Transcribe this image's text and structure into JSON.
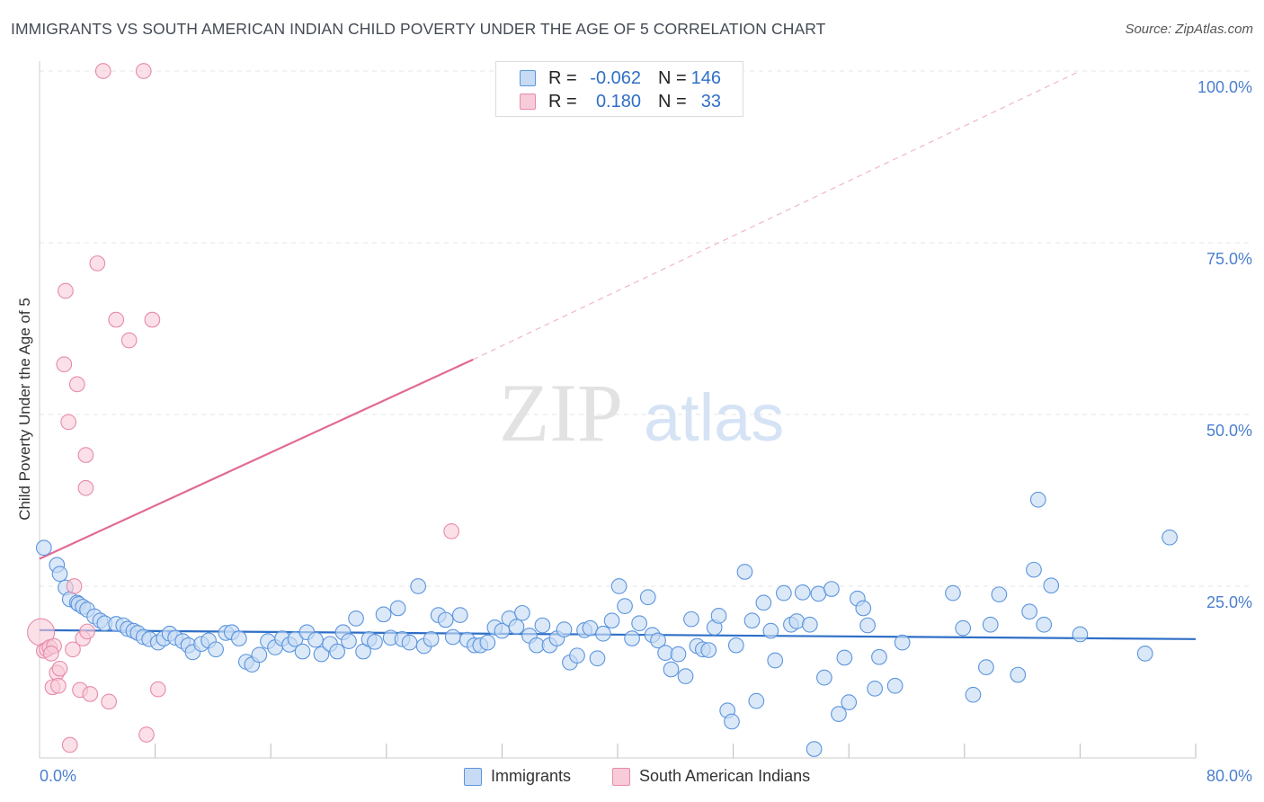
{
  "chart_data": {
    "type": "scatter",
    "title": "IMMIGRANTS VS SOUTH AMERICAN INDIAN CHILD POVERTY UNDER THE AGE OF 5 CORRELATION CHART",
    "source": "Source: ZipAtlas.com",
    "xlabel": "",
    "ylabel": "Child Poverty Under the Age of 5",
    "xlim": [
      0,
      80
    ],
    "ylim": [
      0,
      100
    ],
    "x_tick_labels": [
      {
        "value": 0,
        "label": "0.0%"
      },
      {
        "value": 80,
        "label": "80.0%"
      }
    ],
    "y_tick_labels": [
      {
        "value": 25,
        "label": "25.0%"
      },
      {
        "value": 50,
        "label": "50.0%"
      },
      {
        "value": 75,
        "label": "75.0%"
      },
      {
        "value": 100,
        "label": "100.0%"
      }
    ],
    "grid": true,
    "watermark": {
      "zip": "ZIP",
      "atlas": "atlas"
    },
    "legend": [
      {
        "series": "Immigrants",
        "r_label": "R =",
        "r_value": "-0.062",
        "n_label": "N =",
        "n_value": "146"
      },
      {
        "series": "South American Indians",
        "r_label": "R =",
        "r_value": "0.180",
        "n_label": "N =",
        "n_value": "33"
      }
    ],
    "series": [
      {
        "name": "Immigrants",
        "color": "#5b95dd",
        "fill": "#c7dbf4",
        "trend": {
          "x": [
            0,
            80
          ],
          "y": [
            18.6,
            17.3
          ]
        },
        "points": [
          [
            0.3,
            30.6
          ],
          [
            1.2,
            28.1
          ],
          [
            1.4,
            26.8
          ],
          [
            1.8,
            24.8
          ],
          [
            2.1,
            23.1
          ],
          [
            2.6,
            22.6
          ],
          [
            2.7,
            22.4
          ],
          [
            3.0,
            22.0
          ],
          [
            3.3,
            21.6
          ],
          [
            3.8,
            20.6
          ],
          [
            4.2,
            20.0
          ],
          [
            4.5,
            19.6
          ],
          [
            5.3,
            19.5
          ],
          [
            5.8,
            19.3
          ],
          [
            6.1,
            18.8
          ],
          [
            6.5,
            18.5
          ],
          [
            6.8,
            18.2
          ],
          [
            7.2,
            17.6
          ],
          [
            7.6,
            17.3
          ],
          [
            8.2,
            16.8
          ],
          [
            8.6,
            17.4
          ],
          [
            9.0,
            18.1
          ],
          [
            9.4,
            17.5
          ],
          [
            9.9,
            17.0
          ],
          [
            10.3,
            16.4
          ],
          [
            10.6,
            15.4
          ],
          [
            11.2,
            16.6
          ],
          [
            11.7,
            17.1
          ],
          [
            12.2,
            15.8
          ],
          [
            12.9,
            18.2
          ],
          [
            13.3,
            18.3
          ],
          [
            13.8,
            17.4
          ],
          [
            14.3,
            14.0
          ],
          [
            14.7,
            13.6
          ],
          [
            15.2,
            15.0
          ],
          [
            15.8,
            17.0
          ],
          [
            16.3,
            16.1
          ],
          [
            16.8,
            17.4
          ],
          [
            17.3,
            16.5
          ],
          [
            17.7,
            17.3
          ],
          [
            18.2,
            15.5
          ],
          [
            18.5,
            18.3
          ],
          [
            19.1,
            17.2
          ],
          [
            19.5,
            15.1
          ],
          [
            20.1,
            16.6
          ],
          [
            20.6,
            15.5
          ],
          [
            21.0,
            18.3
          ],
          [
            21.4,
            17.0
          ],
          [
            21.9,
            20.3
          ],
          [
            22.4,
            15.5
          ],
          [
            22.8,
            17.3
          ],
          [
            23.2,
            16.9
          ],
          [
            23.8,
            20.9
          ],
          [
            24.3,
            17.5
          ],
          [
            24.8,
            21.8
          ],
          [
            25.1,
            17.3
          ],
          [
            25.6,
            16.8
          ],
          [
            26.2,
            25.0
          ],
          [
            26.6,
            16.3
          ],
          [
            27.1,
            17.3
          ],
          [
            27.6,
            20.8
          ],
          [
            28.1,
            20.1
          ],
          [
            28.6,
            17.6
          ],
          [
            29.1,
            20.8
          ],
          [
            29.6,
            17.2
          ],
          [
            30.1,
            16.4
          ],
          [
            30.5,
            16.4
          ],
          [
            31.0,
            16.8
          ],
          [
            31.5,
            19.0
          ],
          [
            32.0,
            18.5
          ],
          [
            32.5,
            20.3
          ],
          [
            33.0,
            19.1
          ],
          [
            33.4,
            21.1
          ],
          [
            33.9,
            17.8
          ],
          [
            34.4,
            16.4
          ],
          [
            34.8,
            19.3
          ],
          [
            35.3,
            16.4
          ],
          [
            35.8,
            17.4
          ],
          [
            36.3,
            18.7
          ],
          [
            36.7,
            13.9
          ],
          [
            37.2,
            14.9
          ],
          [
            37.7,
            18.6
          ],
          [
            38.1,
            18.9
          ],
          [
            38.6,
            14.5
          ],
          [
            39.0,
            18.1
          ],
          [
            39.6,
            20.0
          ],
          [
            40.1,
            25.0
          ],
          [
            40.5,
            22.1
          ],
          [
            41.0,
            17.4
          ],
          [
            41.5,
            19.6
          ],
          [
            42.1,
            23.4
          ],
          [
            42.4,
            17.9
          ],
          [
            42.8,
            17.1
          ],
          [
            43.3,
            15.3
          ],
          [
            43.7,
            12.9
          ],
          [
            44.2,
            15.1
          ],
          [
            44.7,
            11.9
          ],
          [
            45.1,
            20.2
          ],
          [
            45.5,
            16.3
          ],
          [
            45.9,
            15.8
          ],
          [
            46.3,
            15.7
          ],
          [
            46.7,
            19.0
          ],
          [
            47.0,
            20.7
          ],
          [
            47.6,
            6.9
          ],
          [
            47.9,
            5.3
          ],
          [
            48.2,
            16.4
          ],
          [
            48.8,
            27.1
          ],
          [
            49.3,
            20.0
          ],
          [
            49.6,
            8.3
          ],
          [
            50.1,
            22.6
          ],
          [
            50.6,
            18.5
          ],
          [
            50.9,
            14.2
          ],
          [
            51.5,
            24.0
          ],
          [
            52.0,
            19.4
          ],
          [
            52.4,
            19.9
          ],
          [
            52.8,
            24.1
          ],
          [
            53.3,
            19.4
          ],
          [
            53.6,
            1.3
          ],
          [
            53.9,
            23.9
          ],
          [
            54.3,
            11.7
          ],
          [
            54.8,
            24.6
          ],
          [
            55.3,
            6.4
          ],
          [
            55.7,
            14.6
          ],
          [
            56.0,
            8.1
          ],
          [
            56.6,
            23.2
          ],
          [
            57.0,
            21.8
          ],
          [
            57.3,
            19.3
          ],
          [
            57.8,
            10.1
          ],
          [
            58.1,
            14.7
          ],
          [
            59.2,
            10.5
          ],
          [
            59.7,
            16.8
          ],
          [
            63.2,
            24.0
          ],
          [
            63.9,
            18.9
          ],
          [
            64.6,
            9.2
          ],
          [
            65.5,
            13.2
          ],
          [
            65.8,
            19.4
          ],
          [
            66.4,
            23.8
          ],
          [
            67.7,
            12.1
          ],
          [
            68.5,
            21.3
          ],
          [
            68.8,
            27.4
          ],
          [
            69.1,
            37.6
          ],
          [
            69.5,
            19.4
          ],
          [
            70.0,
            25.1
          ],
          [
            78.2,
            32.1
          ],
          [
            76.5,
            15.2
          ],
          [
            72.0,
            18.0
          ]
        ]
      },
      {
        "name": "South American Indians",
        "color": "#e78aaa",
        "fill": "#f8cbd9",
        "trend": {
          "x": [
            0,
            30
          ],
          "y": [
            29.0,
            58.0
          ]
        },
        "trend_dashed": {
          "x": [
            30,
            72
          ],
          "y": [
            58.0,
            100.0
          ]
        },
        "points": [
          [
            0.1,
            18.3
          ],
          [
            0.3,
            15.6
          ],
          [
            0.5,
            15.8
          ],
          [
            0.7,
            16.1
          ],
          [
            0.9,
            10.3
          ],
          [
            1.0,
            16.3
          ],
          [
            1.2,
            12.4
          ],
          [
            1.3,
            10.5
          ],
          [
            1.4,
            13.0
          ],
          [
            1.7,
            57.3
          ],
          [
            1.8,
            68.0
          ],
          [
            2.0,
            48.9
          ],
          [
            2.1,
            1.9
          ],
          [
            2.3,
            15.8
          ],
          [
            2.4,
            25.0
          ],
          [
            2.6,
            54.4
          ],
          [
            2.8,
            9.9
          ],
          [
            3.0,
            17.4
          ],
          [
            3.2,
            44.1
          ],
          [
            3.3,
            18.4
          ],
          [
            3.5,
            9.3
          ],
          [
            4.0,
            72.0
          ],
          [
            4.4,
            100.0
          ],
          [
            4.8,
            8.2
          ],
          [
            5.3,
            63.8
          ],
          [
            6.2,
            60.8
          ],
          [
            7.2,
            100.0
          ],
          [
            7.4,
            3.4
          ],
          [
            7.8,
            63.8
          ],
          [
            8.2,
            10.0
          ],
          [
            28.5,
            33.0
          ],
          [
            3.2,
            39.3
          ],
          [
            0.8,
            15.2
          ]
        ]
      }
    ]
  }
}
